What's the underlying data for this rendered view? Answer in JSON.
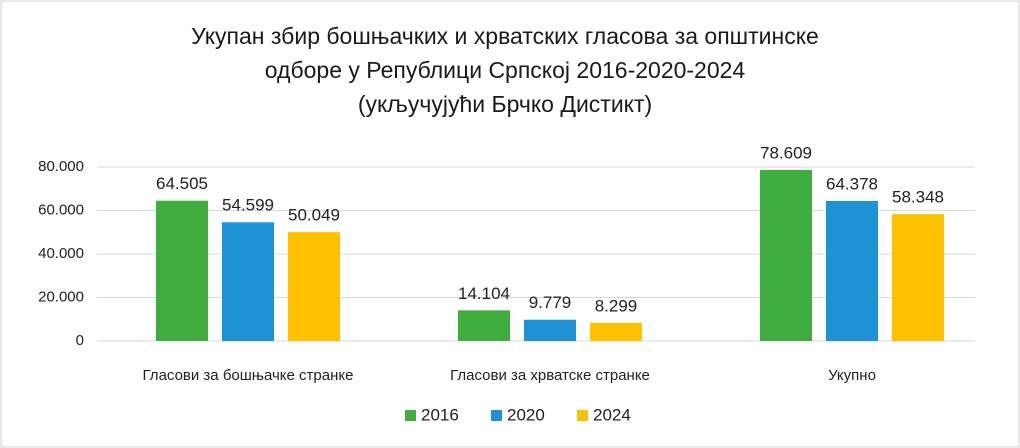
{
  "chart_data": {
    "type": "bar",
    "title": [
      "Укупан збир бошњачких и хрватских гласова за општинске",
      "одборе у Републици Српској 2016-2020-2024",
      "(укључујући Брчко Дистикт)"
    ],
    "categories": [
      "Гласови за бошњачке странке",
      "Гласови за хрватске странке",
      "Укупно"
    ],
    "series": [
      {
        "name": "2016",
        "color": "#3fae3f",
        "values": [
          64505,
          14104,
          78609
        ],
        "value_labels": [
          "64.505",
          "14.104",
          "78.609"
        ]
      },
      {
        "name": "2020",
        "color": "#1f92d6",
        "values": [
          54599,
          9779,
          64378
        ],
        "value_labels": [
          "54.599",
          "9.779",
          "64.378"
        ]
      },
      {
        "name": "2024",
        "color": "#ffc000",
        "values": [
          50049,
          8299,
          58348
        ],
        "value_labels": [
          "50.049",
          "8.299",
          "58.348"
        ]
      }
    ],
    "ylim": [
      0,
      80000
    ],
    "yticks": [
      0,
      {
        "value": 20000,
        "label": "20.000"
      },
      {
        "value": 40000,
        "label": "40.000"
      },
      {
        "value": 60000,
        "label": "60.000"
      },
      {
        "value": 80000,
        "label": "80.000"
      }
    ],
    "grid": true,
    "legend": "bottom"
  }
}
